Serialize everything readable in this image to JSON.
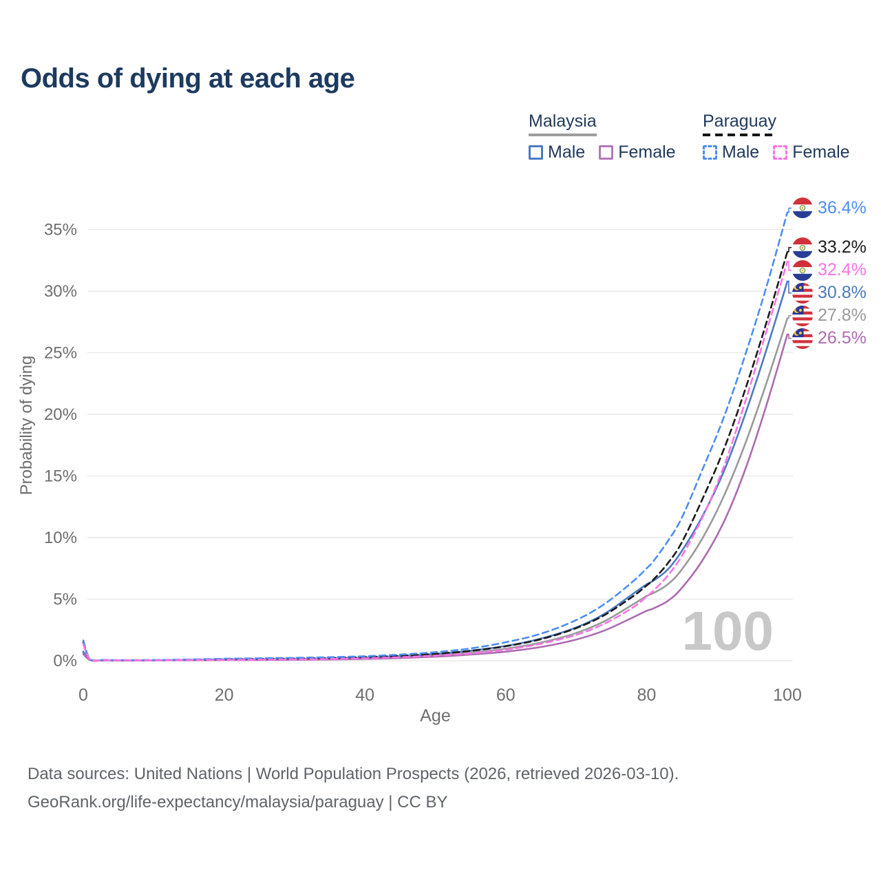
{
  "title": "Odds of dying at each age",
  "legend": {
    "groups": [
      {
        "country": "Malaysia",
        "style": "solid",
        "underline_color": "#9e9e9e",
        "items": [
          {
            "label": "Male",
            "color": "#4a7bc0"
          },
          {
            "label": "Female",
            "color": "#b279b8"
          }
        ]
      },
      {
        "country": "Paraguay",
        "style": "dashed",
        "underline_color": "#161616",
        "items": [
          {
            "label": "Male",
            "color": "#4d8df2"
          },
          {
            "label": "Female",
            "color": "#f973e6"
          }
        ]
      }
    ]
  },
  "chart_data": {
    "type": "line",
    "title": "Odds of dying at each age",
    "xlabel": "Age",
    "ylabel": "Probability of dying",
    "xlim": [
      0,
      100
    ],
    "ylim_percent": [
      0,
      37
    ],
    "x_ticks": [
      0,
      20,
      40,
      60,
      80,
      100
    ],
    "y_ticks_percent": [
      0,
      5,
      10,
      15,
      20,
      25,
      30,
      35
    ],
    "y_tick_suffix": "%",
    "grid": true,
    "legend_position": "top-right",
    "watermark": "100",
    "x": [
      0,
      1,
      3,
      5,
      10,
      15,
      20,
      25,
      30,
      35,
      40,
      45,
      50,
      55,
      60,
      65,
      70,
      74,
      78,
      80,
      81,
      83,
      85,
      88,
      91,
      94,
      97,
      100
    ],
    "series": [
      {
        "id": "paraguay-male",
        "country": "Paraguay",
        "sex": "Male",
        "color": "#4d8df2",
        "dashed": true,
        "end_label": "36.4%",
        "flag": "paraguay",
        "values": [
          1.65,
          0.12,
          0.07,
          0.05,
          0.06,
          0.1,
          0.16,
          0.2,
          0.24,
          0.29,
          0.37,
          0.5,
          0.7,
          1.0,
          1.5,
          2.2,
          3.3,
          4.6,
          6.4,
          7.5,
          8.1,
          9.7,
          11.6,
          15.6,
          19.8,
          24.8,
          30.3,
          36.4
        ]
      },
      {
        "id": "paraguay-total",
        "country": "Paraguay",
        "sex": "Both",
        "color": "#1b1b1b",
        "dashed": true,
        "end_label": "33.2%",
        "flag": "paraguay",
        "values": [
          1.5,
          0.1,
          0.06,
          0.04,
          0.05,
          0.08,
          0.12,
          0.15,
          0.18,
          0.22,
          0.29,
          0.4,
          0.56,
          0.8,
          1.18,
          1.75,
          2.65,
          3.7,
          5.2,
          6.1,
          6.6,
          7.9,
          9.6,
          13.2,
          17.2,
          22.0,
          27.4,
          33.2
        ]
      },
      {
        "id": "paraguay-female",
        "country": "Paraguay",
        "sex": "Female",
        "color": "#f973e6",
        "dashed": true,
        "end_label": "32.4%",
        "flag": "paraguay",
        "values": [
          1.35,
          0.09,
          0.05,
          0.04,
          0.04,
          0.06,
          0.07,
          0.09,
          0.11,
          0.15,
          0.2,
          0.29,
          0.42,
          0.6,
          0.9,
          1.38,
          2.1,
          3.0,
          4.3,
          5.2,
          5.7,
          6.9,
          8.5,
          11.7,
          15.8,
          21.0,
          26.7,
          32.4
        ]
      },
      {
        "id": "malaysia-male",
        "country": "Malaysia",
        "sex": "Male",
        "color": "#4a7bc0",
        "dashed": false,
        "end_label": "30.8%",
        "flag": "malaysia",
        "values": [
          0.75,
          0.07,
          0.04,
          0.03,
          0.04,
          0.07,
          0.1,
          0.12,
          0.14,
          0.18,
          0.25,
          0.37,
          0.55,
          0.82,
          1.2,
          1.8,
          2.7,
          3.8,
          5.4,
          6.2,
          6.5,
          7.4,
          8.9,
          11.8,
          15.4,
          20.0,
          25.2,
          30.8
        ]
      },
      {
        "id": "malaysia-total",
        "country": "Malaysia",
        "sex": "Both",
        "color": "#9a9a9a",
        "dashed": false,
        "end_label": "27.8%",
        "flag": "malaysia",
        "values": [
          0.65,
          0.06,
          0.04,
          0.03,
          0.03,
          0.05,
          0.08,
          0.09,
          0.11,
          0.14,
          0.2,
          0.3,
          0.45,
          0.66,
          0.98,
          1.48,
          2.25,
          3.2,
          4.55,
          5.25,
          5.5,
          6.2,
          7.4,
          10.0,
          13.4,
          17.6,
          22.5,
          27.8
        ]
      },
      {
        "id": "malaysia-female",
        "country": "Malaysia",
        "sex": "Female",
        "color": "#ad6bb0",
        "dashed": false,
        "end_label": "26.5%",
        "flag": "malaysia",
        "values": [
          0.55,
          0.05,
          0.03,
          0.02,
          0.03,
          0.04,
          0.05,
          0.06,
          0.08,
          0.1,
          0.15,
          0.22,
          0.33,
          0.5,
          0.74,
          1.12,
          1.72,
          2.45,
          3.5,
          4.05,
          4.25,
          4.85,
          5.9,
          8.2,
          11.3,
          15.5,
          20.7,
          26.5
        ]
      }
    ]
  },
  "palette": {
    "title_text": "#1d3a5f",
    "legend_text": "#22395c",
    "axis_text": "#6e6e6e",
    "gridline": "#e9e9e9",
    "watermark": "#c8c8c8",
    "footer_text": "#5f6368"
  },
  "footer": {
    "line1": "Data sources: United Nations | World Population Prospects (2026, retrieved 2026-03-10).",
    "line2": "GeoRank.org/life-expectancy/malaysia/paraguay | CC BY"
  }
}
